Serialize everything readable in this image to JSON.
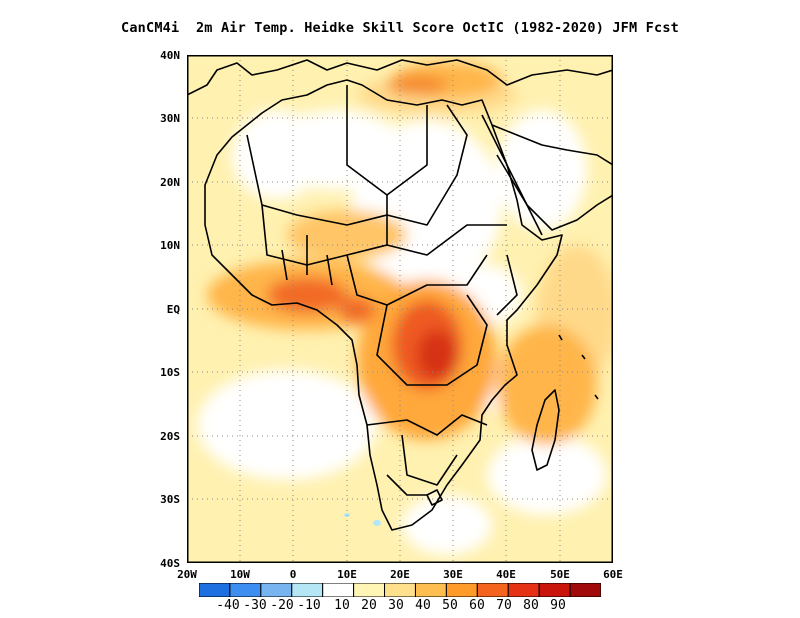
{
  "title": "CanCM4i  2m Air Temp. Heidke Skill Score OctIC (1982-2020) JFM Fcst",
  "map": {
    "lon_range": [
      -20,
      60
    ],
    "lat_range": [
      -40,
      40
    ],
    "lat_labels": [
      "40N",
      "30N",
      "20N",
      "10N",
      "EQ",
      "10S",
      "20S",
      "30S",
      "40S"
    ],
    "lon_labels": [
      "20W",
      "10W",
      "0",
      "10E",
      "20E",
      "30E",
      "40E",
      "50E",
      "60E"
    ],
    "grid": "dotted every 10°"
  },
  "colorbar": {
    "labels": [
      "-40",
      "-30",
      "-20",
      "-10",
      "10",
      "20",
      "30",
      "40",
      "50",
      "60",
      "70",
      "80",
      "90"
    ],
    "colors": [
      "#1e6fe0",
      "#3c8ef0",
      "#78b4f0",
      "#b4e6f5",
      "#ffffff",
      "#fff5b4",
      "#ffe08c",
      "#ffbe50",
      "#ff9b28",
      "#f5641e",
      "#e63214",
      "#c8140a",
      "#a00a0a"
    ]
  }
}
